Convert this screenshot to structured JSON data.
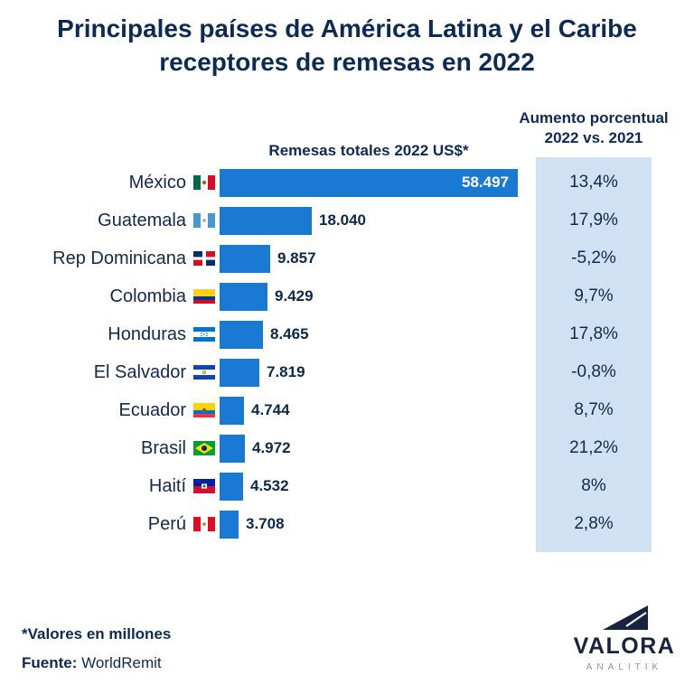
{
  "title": {
    "line1": "Principales países de América Latina y el Caribe",
    "line2": "receptores de remesas en 2022"
  },
  "headers": {
    "remesas": "Remesas totales 2022 US$*",
    "aumento_line1": "Aumento porcentual",
    "aumento_line2": "2022 vs. 2021"
  },
  "footer": {
    "note": "*Valores en millones",
    "source_label": "Fuente:",
    "source_value": "WorldRemit"
  },
  "logo": {
    "name": "VALORA",
    "sub": "ANALITIK"
  },
  "colors": {
    "bar": "#1a79d3",
    "panel": "#cfe1f3",
    "title_text": "#0e2a52",
    "bar_value_inside": "#ffffff"
  },
  "chart_data": {
    "type": "bar",
    "orientation": "horizontal",
    "title": "Principales países de América Latina y el Caribe receptores de remesas en 2022",
    "value_axis_label": "Remesas totales 2022 US$*",
    "secondary_column_label": "Aumento porcentual 2022 vs. 2021",
    "unit_note": "*Valores en millones",
    "source": "WorldRemit",
    "legend_position": "none",
    "grid": false,
    "categories": [
      "México",
      "Guatemala",
      "Rep Dominicana",
      "Colombia",
      "Honduras",
      "El Salvador",
      "Ecuador",
      "Brasil",
      "Haití",
      "Perú"
    ],
    "values": [
      58497,
      18040,
      9857,
      9429,
      8465,
      7819,
      4744,
      4972,
      4532,
      3708
    ],
    "value_labels": [
      "58.497",
      "18.040",
      "9.857",
      "9.429",
      "8.465",
      "7.819",
      "4.744",
      "4.972",
      "4.532",
      "3.708"
    ],
    "pct_change": [
      13.4,
      17.9,
      -5.2,
      9.7,
      17.8,
      -0.8,
      8.7,
      21.2,
      8,
      2.8
    ],
    "pct_change_labels": [
      "13,4%",
      "17,9%",
      "-5,2%",
      "9,7%",
      "17,8%",
      "-0,8%",
      "8,7%",
      "21,2%",
      "8%",
      "2,8%"
    ],
    "flags": [
      "mx",
      "gt",
      "do",
      "co",
      "hn",
      "sv",
      "ec",
      "br",
      "ht",
      "pe"
    ],
    "flag_names": [
      "mexico",
      "guatemala",
      "dominican-republic",
      "colombia",
      "honduras",
      "el-salvador",
      "ecuador",
      "brazil",
      "haiti",
      "peru"
    ]
  }
}
